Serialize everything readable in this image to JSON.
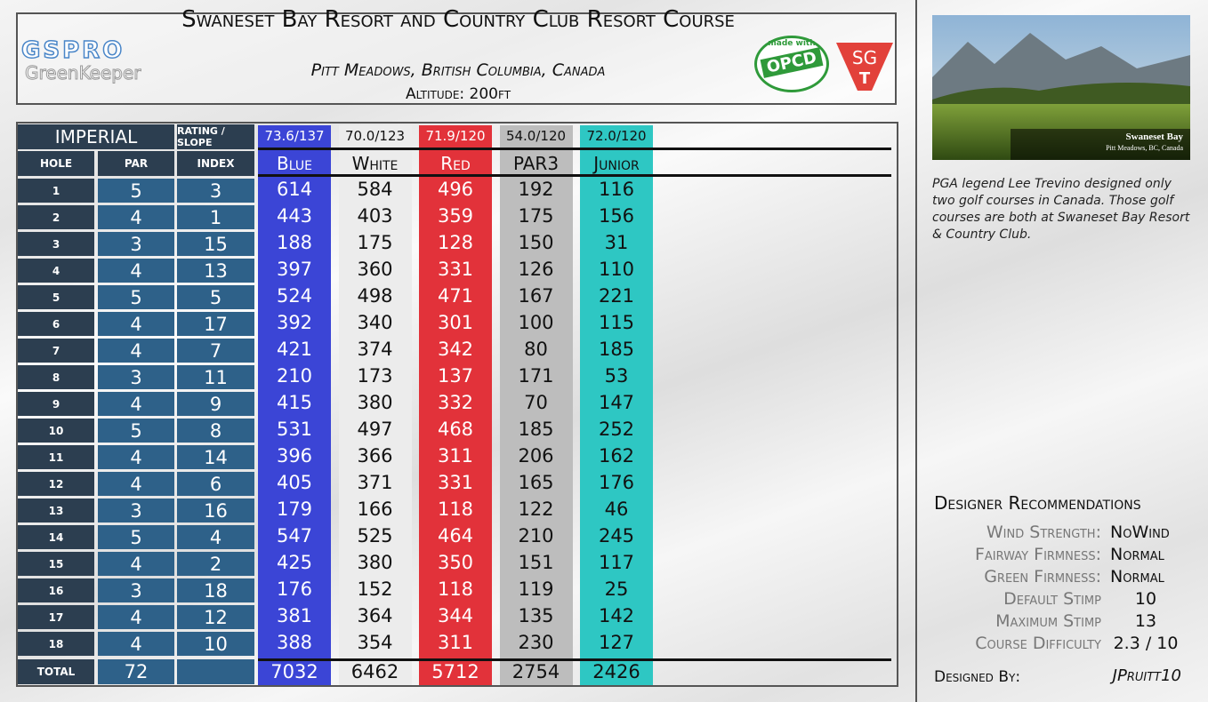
{
  "header": {
    "title": "Swaneset Bay Resort and Country Club Resort Course",
    "location": "Pitt Meadows, British Columbia, Canada",
    "altitude": "Altitude: 200ft"
  },
  "logos": {
    "gspro": "GSPRO",
    "greenkeeper": "GreenKeeper",
    "made_with": "made with",
    "opcd": "OPCD",
    "sg": "SG",
    "t": "T"
  },
  "scorecard": {
    "unit": "IMPERIAL",
    "rating_label": "RATING / SLOPE",
    "columns": [
      "HOLE",
      "PAR",
      "INDEX"
    ],
    "holes": [
      1,
      2,
      3,
      4,
      5,
      6,
      7,
      8,
      9,
      10,
      11,
      12,
      13,
      14,
      15,
      16,
      17,
      18
    ],
    "par": [
      5,
      4,
      3,
      4,
      5,
      4,
      4,
      3,
      4,
      5,
      4,
      4,
      3,
      5,
      4,
      3,
      4,
      4
    ],
    "index": [
      3,
      1,
      15,
      13,
      5,
      17,
      7,
      11,
      9,
      8,
      14,
      6,
      16,
      4,
      2,
      18,
      12,
      10
    ],
    "total_label": "TOTAL",
    "par_total": 72,
    "tees": [
      {
        "name": "Blue",
        "rating": "73.6/137",
        "color": "#3b45d6",
        "text_color": "#ffffff",
        "yards": [
          614,
          443,
          188,
          397,
          524,
          392,
          421,
          210,
          415,
          531,
          396,
          405,
          179,
          547,
          425,
          176,
          381,
          388
        ],
        "total": 7032
      },
      {
        "name": "White",
        "rating": "70.0/123",
        "color": "#ececec",
        "text_color": "#111111",
        "yards": [
          584,
          403,
          175,
          360,
          498,
          340,
          374,
          173,
          380,
          497,
          366,
          371,
          166,
          525,
          380,
          152,
          364,
          354
        ],
        "total": 6462
      },
      {
        "name": "Red",
        "rating": "71.9/120",
        "color": "#e2323a",
        "text_color": "#ffffff",
        "yards": [
          496,
          359,
          128,
          331,
          471,
          301,
          342,
          137,
          332,
          468,
          311,
          331,
          118,
          464,
          350,
          118,
          344,
          311
        ],
        "total": 5712
      },
      {
        "name": "PAR3",
        "rating": "54.0/120",
        "color": "#bdbdbd",
        "text_color": "#111111",
        "yards": [
          192,
          175,
          150,
          126,
          167,
          100,
          80,
          171,
          70,
          185,
          206,
          165,
          122,
          210,
          151,
          119,
          135,
          230
        ],
        "total": 2754
      },
      {
        "name": "Junior",
        "rating": "72.0/120",
        "color": "#2ec7c3",
        "text_color": "#111111",
        "yards": [
          116,
          156,
          31,
          110,
          221,
          115,
          185,
          53,
          147,
          252,
          162,
          176,
          46,
          245,
          117,
          25,
          142,
          127
        ],
        "total": 2426
      }
    ]
  },
  "photo": {
    "name": "Swaneset Bay",
    "location": "Pitt Meadows, BC, Canada"
  },
  "description": "PGA legend Lee Trevino designed only two golf courses in Canada. Those golf courses are both at Swaneset Bay Resort & Country Club.",
  "recommendations": {
    "title": "Designer Recommendations",
    "items": [
      {
        "label": "Wind Strength:",
        "value": "NoWind"
      },
      {
        "label": "Fairway Firmness:",
        "value": "Normal"
      },
      {
        "label": "Green Firmness:",
        "value": "Normal"
      },
      {
        "label": "Default Stimp",
        "value": "10"
      },
      {
        "label": "Maximum Stimp",
        "value": "13"
      },
      {
        "label": "Course Difficulty",
        "value": "2.3 / 10"
      }
    ],
    "designed_by_label": "Designed By:",
    "designer": "JPruitt10"
  }
}
